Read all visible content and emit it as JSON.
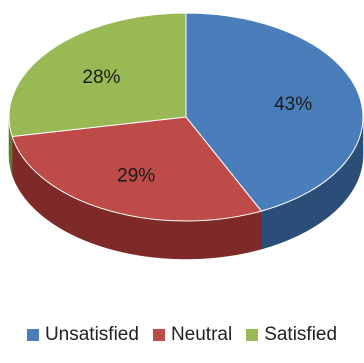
{
  "chart_data": {
    "type": "pie",
    "style": "3d",
    "title": "",
    "categories": [
      "Unsatisfied",
      "Neutral",
      "Satisfied"
    ],
    "values": [
      43,
      29,
      28
    ],
    "labels": [
      "43%",
      "29%",
      "28%"
    ],
    "colors": [
      "#4A7EBB",
      "#BE4B48",
      "#98B954"
    ],
    "side_colors": [
      "#2B4E78",
      "#7E2A28",
      "#5E7A30"
    ],
    "start_angle_deg": 0,
    "direction": "clockwise",
    "legend_position": "bottom"
  }
}
